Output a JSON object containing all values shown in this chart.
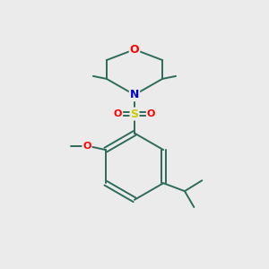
{
  "bg_color": "#ebebeb",
  "bond_color": "#2d6b5a",
  "atom_colors": {
    "O": "#ff0000",
    "N": "#0000cd",
    "S": "#cccc00",
    "C": "#2d6b5a"
  },
  "bond_lw": 1.4,
  "fontsize_large": 9,
  "fontsize_small": 8
}
